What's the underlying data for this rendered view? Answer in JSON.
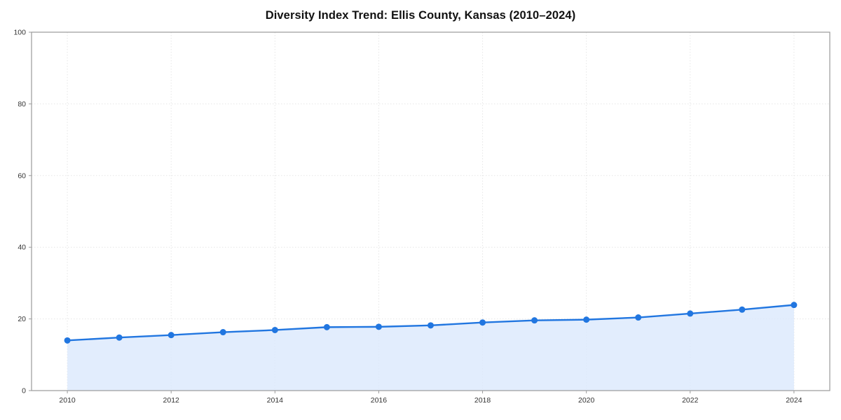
{
  "chart_data": {
    "type": "line",
    "title": "Diversity Index Trend: Ellis County, Kansas (2010–2024)",
    "series_name": "Diversity Index",
    "x": [
      2010,
      2011,
      2012,
      2013,
      2014,
      2015,
      2016,
      2017,
      2018,
      2019,
      2020,
      2021,
      2022,
      2023,
      2024
    ],
    "values": [
      14.0,
      14.8,
      15.5,
      16.3,
      16.9,
      17.7,
      17.8,
      18.2,
      19.0,
      19.6,
      19.8,
      20.4,
      21.5,
      22.6,
      23.9
    ],
    "xlabel": "",
    "ylabel": "",
    "xlim": [
      2009.31,
      2024.69
    ],
    "ylim": [
      0,
      100
    ],
    "xticks": [
      2010,
      2012,
      2014,
      2016,
      2018,
      2020,
      2022,
      2024
    ],
    "yticks": [
      0,
      20,
      40,
      60,
      80,
      100
    ],
    "grid": true,
    "legend": "none",
    "colors": {
      "line": "#2176e0",
      "marker": "#2176e0",
      "area_fill": "#dbe9fc",
      "grid": "#e6e6e6",
      "axis_border": "#9a9a9a",
      "tick_text": "#333333",
      "background": "#ffffff"
    }
  }
}
